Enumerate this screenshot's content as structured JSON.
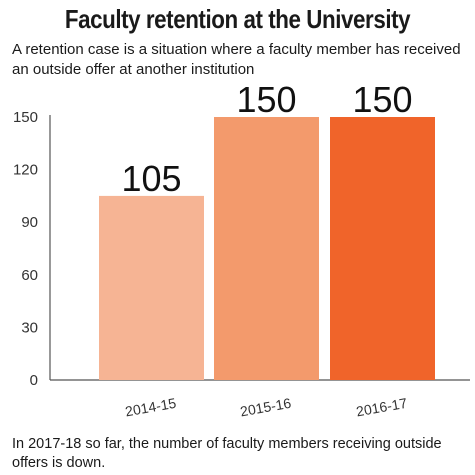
{
  "title": "Faculty retention at the University",
  "subtitle": "A retention case is a situation where a faculty member has received an outside offer at another institution",
  "note": "In 2017-18 so far, the number of faculty members receiving outside offers is down.",
  "chart_data": {
    "type": "bar",
    "categories": [
      "2014-15",
      "2015-16",
      "2016-17"
    ],
    "values": [
      105,
      150,
      150
    ],
    "data_labels": [
      "105",
      "150",
      "150"
    ],
    "yticks": [
      0,
      30,
      60,
      90,
      120,
      150
    ],
    "ylim": [
      0,
      150
    ],
    "colors": [
      "#f6b494",
      "#f39a6c",
      "#f0642a"
    ],
    "xlabel": "",
    "ylabel": "",
    "grid": false
  }
}
